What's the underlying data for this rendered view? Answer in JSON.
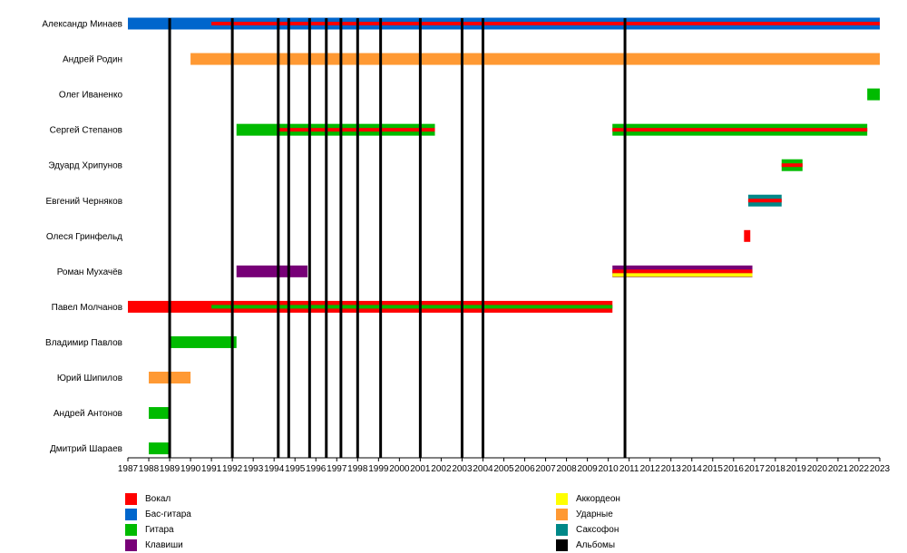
{
  "chart_data": {
    "type": "timeline",
    "x_range": [
      1987,
      2023
    ],
    "tick_labels": [
      "1987",
      "1988",
      "1989",
      "1990",
      "1991",
      "1992",
      "1993",
      "1994",
      "1995",
      "1996",
      "1997",
      "1998",
      "1999",
      "2000",
      "2001",
      "2002",
      "2003",
      "2004",
      "2005",
      "2006",
      "2007",
      "2008",
      "2009",
      "2010",
      "2011",
      "2012",
      "2013",
      "2014",
      "2015",
      "2016",
      "2017",
      "2018",
      "2019",
      "2020",
      "2021",
      "2022",
      "2023"
    ],
    "members": [
      {
        "name": "Александр Минаев",
        "periods": [
          {
            "role": "Бас-гитара",
            "start": 1987,
            "end": 2023
          },
          {
            "role": "Вокал",
            "start": 1991,
            "end": 2023,
            "secondary": true
          }
        ]
      },
      {
        "name": "Андрей Родин",
        "periods": [
          {
            "role": "Ударные",
            "start": 1990,
            "end": 2023
          }
        ]
      },
      {
        "name": "Олег Иваненко",
        "periods": [
          {
            "role": "Гитара",
            "start": 2022.4,
            "end": 2023
          }
        ]
      },
      {
        "name": "Сергей Степанов",
        "periods": [
          {
            "role": "Гитара",
            "start": 1992.2,
            "end": 2001.7
          },
          {
            "role": "Вокал",
            "start": 1994.2,
            "end": 2001.7,
            "secondary": true
          },
          {
            "role": "Гитара",
            "start": 2010.2,
            "end": 2022.4
          },
          {
            "role": "Вокал",
            "start": 2010.2,
            "end": 2022.4,
            "secondary": true
          }
        ]
      },
      {
        "name": "Эдуард Хрипунов",
        "periods": [
          {
            "role": "Гитара",
            "start": 2018.3,
            "end": 2019.3
          },
          {
            "role": "Вокал",
            "start": 2018.3,
            "end": 2019.3,
            "secondary": true
          }
        ]
      },
      {
        "name": "Евгений Черняков",
        "periods": [
          {
            "role": "Саксофон",
            "start": 2016.7,
            "end": 2018.3
          },
          {
            "role": "Вокал",
            "start": 2016.7,
            "end": 2018.3,
            "secondary": true
          }
        ]
      },
      {
        "name": "Олеся Гринфельд",
        "periods": [
          {
            "role": "Вокал",
            "start": 2016.5,
            "end": 2016.8
          }
        ]
      },
      {
        "name": "Роман Мухачёв",
        "periods": [
          {
            "role": "Клавиши",
            "start": 1992.2,
            "end": 1995.6
          },
          {
            "role": "Клавиши",
            "start": 2010.2,
            "end": 2016.9
          },
          {
            "role": "Вокал",
            "start": 2010.2,
            "end": 2016.9,
            "secondary": true
          },
          {
            "role": "Аккордеон",
            "start": 2010.2,
            "end": 2016.9,
            "secondary": true,
            "offset": 1
          }
        ]
      },
      {
        "name": "Павел Молчанов",
        "periods": [
          {
            "role": "Вокал",
            "start": 1987,
            "end": 2010.2
          },
          {
            "role": "Гитара",
            "start": 1991,
            "end": 2010.2,
            "secondary": true
          }
        ]
      },
      {
        "name": "Владимир Павлов",
        "periods": [
          {
            "role": "Гитара",
            "start": 1989,
            "end": 1992.2
          }
        ]
      },
      {
        "name": "Юрий Шипилов",
        "periods": [
          {
            "role": "Ударные",
            "start": 1988,
            "end": 1990
          }
        ]
      },
      {
        "name": "Андрей Антонов",
        "periods": [
          {
            "role": "Гитара",
            "start": 1988,
            "end": 1989
          }
        ]
      },
      {
        "name": "Дмитрий Шараев",
        "periods": [
          {
            "role": "Гитара",
            "start": 1988,
            "end": 1989
          }
        ]
      }
    ],
    "albums": [
      1989,
      1992,
      1994.2,
      1994.7,
      1995.7,
      1996.5,
      1997.2,
      1998,
      1999.1,
      2001,
      2003,
      2004,
      2010.8
    ],
    "legend": [
      {
        "label": "Вокал",
        "color": "#ff0000"
      },
      {
        "label": "Бас-гитара",
        "color": "#0066cc"
      },
      {
        "label": "Гитара",
        "color": "#00bb00"
      },
      {
        "label": "Клавиши",
        "color": "#770077"
      },
      {
        "label": "Аккордеон",
        "color": "#ffff00"
      },
      {
        "label": "Ударные",
        "color": "#ff9933"
      },
      {
        "label": "Саксофон",
        "color": "#008888"
      },
      {
        "label": "Альбомы",
        "color": "#000000"
      }
    ]
  }
}
